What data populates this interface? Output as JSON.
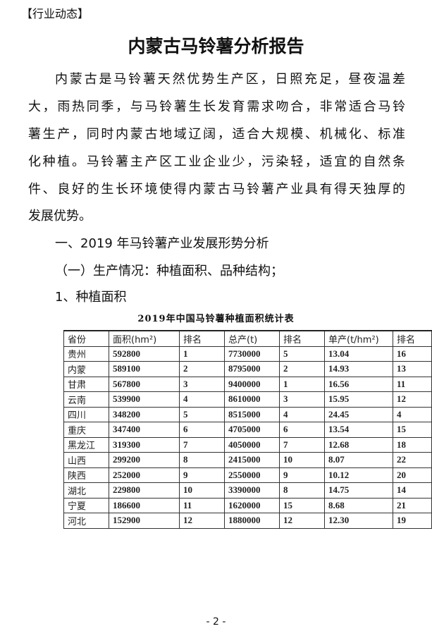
{
  "section_tag": "【行业动态】",
  "title": "内蒙古马铃薯分析报告",
  "paragraph_lines": [
    "内蒙古是马铃薯天然优势生产区，日照充足，昼夜温差",
    "大，雨热同季，与马铃薯生长发育需求吻合，非常适合马铃",
    "薯生产，同时内蒙古地域辽阔，适合大规模、机械化、标准",
    "化种植。马铃薯主产区工业企业少，污染轻，适宜的自然条",
    "件、良好的生长环境使得内蒙古马铃薯产业具有得天独厚的",
    "发展优势。"
  ],
  "headings": [
    "一、2019 年马铃薯产业发展形势分析",
    "（一）生产情况：种植面积、品种结构；",
    "1、种植面积"
  ],
  "table": {
    "title": "2019年中国马铃薯种植面积统计表",
    "headers": [
      "省份",
      "面积(hm²)",
      "排名",
      "总产(t)",
      "排名",
      "单产(t/hm²)",
      "排名"
    ],
    "rows": [
      [
        "贵州",
        "592800",
        "1",
        "7730000",
        "5",
        "13.04",
        "16"
      ],
      [
        "内蒙",
        "589100",
        "2",
        "8795000",
        "2",
        "14.93",
        "13"
      ],
      [
        "甘肃",
        "567800",
        "3",
        "9400000",
        "1",
        "16.56",
        "11"
      ],
      [
        "云南",
        "539900",
        "4",
        "8610000",
        "3",
        "15.95",
        "12"
      ],
      [
        "四川",
        "348200",
        "5",
        "8515000",
        "4",
        "24.45",
        "4"
      ],
      [
        "重庆",
        "347400",
        "6",
        "4705000",
        "6",
        "13.54",
        "15"
      ],
      [
        "黑龙江",
        "319300",
        "7",
        "4050000",
        "7",
        "12.68",
        "18"
      ],
      [
        "山西",
        "299200",
        "8",
        "2415000",
        "10",
        "8.07",
        "22"
      ],
      [
        "陕西",
        "252000",
        "9",
        "2550000",
        "9",
        "10.12",
        "20"
      ],
      [
        "湖北",
        "229800",
        "10",
        "3390000",
        "8",
        "14.75",
        "14"
      ],
      [
        "宁夏",
        "186600",
        "11",
        "1620000",
        "15",
        "8.68",
        "21"
      ],
      [
        "河北",
        "152900",
        "12",
        "1880000",
        "12",
        "12.30",
        "19"
      ]
    ]
  },
  "page_number": "- 2 -"
}
